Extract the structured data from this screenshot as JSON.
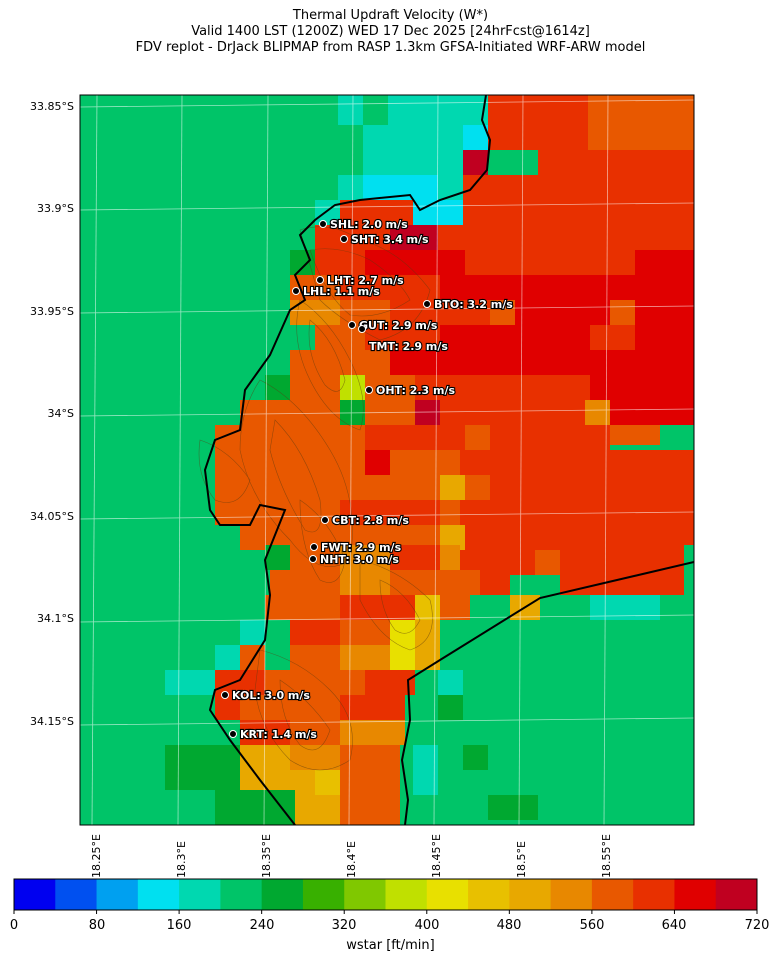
{
  "title": {
    "line1": "Thermal Updraft Velocity (W*)",
    "line2": "Valid 1400 LST (1200Z) WED 17 Dec 2025 [24hrFcst@1614z]",
    "line3": "FDV replot - DrJack BLIPMAP from RASP 1.3km GFSA-Initiated WRF-ARW model"
  },
  "lat_labels": [
    "33.85°S",
    "33.9°S",
    "33.95°S",
    "34°S",
    "34.05°S",
    "34.1°S",
    "34.15°S"
  ],
  "lon_labels": [
    "18.25°E",
    "18.3°E",
    "18.35°E",
    "18.4°E",
    "18.45°E",
    "18.5°E",
    "18.55°E"
  ],
  "sites": [
    {
      "code": "SHL",
      "label": "SHL: 2.0 m/s"
    },
    {
      "code": "SHT",
      "label": "SHT: 3.4 m/s"
    },
    {
      "code": "LHT",
      "label": "LHT: 2.7 m/s"
    },
    {
      "code": "LHL",
      "label": "LHL: 1.1 m/s"
    },
    {
      "code": "BTO",
      "label": "BTO: 3.2 m/s"
    },
    {
      "code": "GUT",
      "label": "GUT: 2.9 m/s"
    },
    {
      "code": "TMT",
      "label": "TMT: 2.9 m/s"
    },
    {
      "code": "OHT",
      "label": "OHT: 2.3 m/s"
    },
    {
      "code": "CBT",
      "label": "CBT: 2.8 m/s"
    },
    {
      "code": "FWT",
      "label": "FWT: 2.9 m/s"
    },
    {
      "code": "NHT",
      "label": "NHT: 3.0 m/s"
    },
    {
      "code": "KOL",
      "label": "KOL: 3.0 m/s"
    },
    {
      "code": "KRT",
      "label": "KRT: 1.4 m/s"
    }
  ],
  "colorbar": {
    "title": "wstar [ft/min]",
    "ticks": [
      "0",
      "80",
      "160",
      "240",
      "320",
      "400",
      "480",
      "560",
      "640",
      "720"
    ],
    "colors": [
      "#0000f0",
      "#0050f0",
      "#00a0f0",
      "#00e0f0",
      "#00d8b0",
      "#00c468",
      "#00a830",
      "#38b000",
      "#80c800",
      "#c0e000",
      "#e8e000",
      "#e8c000",
      "#e8a800",
      "#e88800",
      "#e85800",
      "#e83000",
      "#e00000",
      "#c00020"
    ]
  }
}
